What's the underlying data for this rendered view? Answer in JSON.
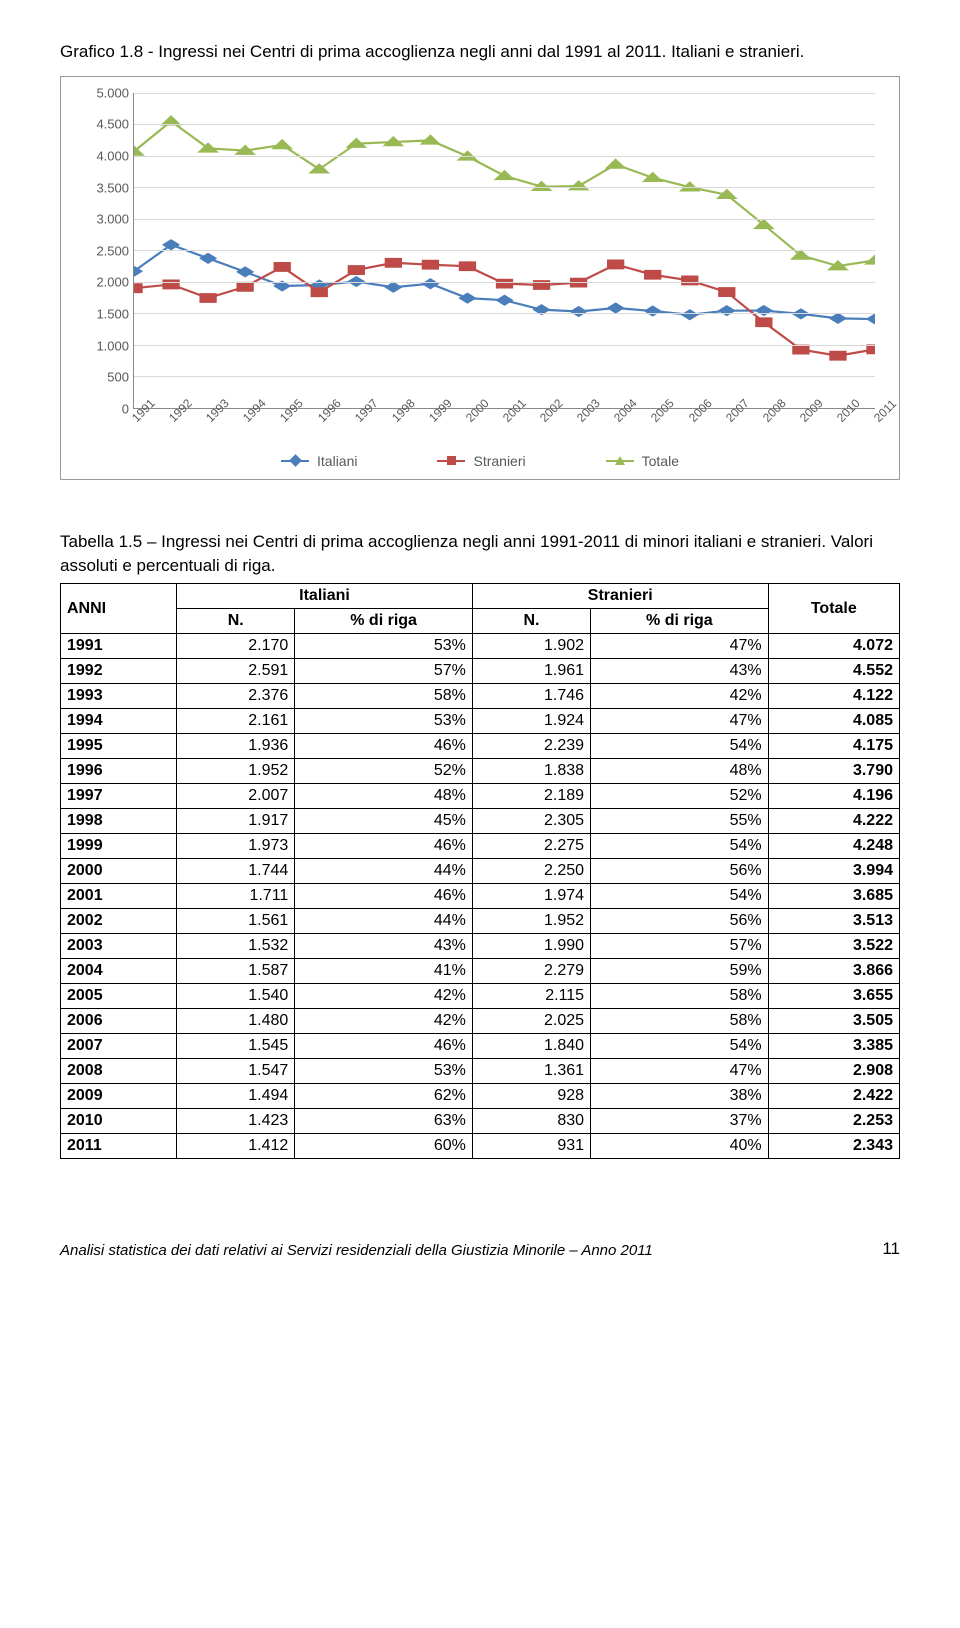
{
  "title": "Grafico 1.8 - Ingressi nei Centri di prima accoglienza negli anni dal 1991 al 2011. Italiani e stranieri.",
  "chart": {
    "type": "line",
    "ylim": [
      0,
      5000
    ],
    "yticks": [
      0,
      500,
      1000,
      1500,
      2000,
      2500,
      3000,
      3500,
      4000,
      4500,
      5000
    ],
    "ytick_labels": [
      "0",
      "500",
      "1.000",
      "1.500",
      "2.000",
      "2.500",
      "3.000",
      "3.500",
      "4.000",
      "4.500",
      "5.000"
    ],
    "categories": [
      "1991",
      "1992",
      "1993",
      "1994",
      "1995",
      "1996",
      "1997",
      "1998",
      "1999",
      "2000",
      "2001",
      "2002",
      "2003",
      "2004",
      "2005",
      "2006",
      "2007",
      "2008",
      "2009",
      "2010",
      "2011"
    ],
    "series": [
      {
        "name": "Italiani",
        "color": "#4a7ebb",
        "marker": "diamond",
        "values": [
          2170,
          2591,
          2376,
          2161,
          1936,
          1952,
          2007,
          1917,
          1973,
          1744,
          1711,
          1561,
          1532,
          1587,
          1540,
          1480,
          1545,
          1547,
          1494,
          1423,
          1412
        ]
      },
      {
        "name": "Stranieri",
        "color": "#be4b48",
        "marker": "square",
        "values": [
          1902,
          1961,
          1746,
          1924,
          2239,
          1838,
          2189,
          2305,
          2275,
          2250,
          1974,
          1952,
          1990,
          2279,
          2115,
          2025,
          1840,
          1361,
          928,
          830,
          931
        ]
      },
      {
        "name": "Totale",
        "color": "#98b954",
        "marker": "triangle",
        "values": [
          4072,
          4552,
          4122,
          4085,
          4175,
          3790,
          4196,
          4222,
          4248,
          3994,
          3685,
          3513,
          3522,
          3866,
          3655,
          3505,
          3385,
          2908,
          2422,
          2253,
          2343
        ]
      }
    ],
    "grid_color": "#d9d9d9",
    "axis_color": "#888888",
    "background": "#ffffff"
  },
  "caption": "Tabella 1.5 – Ingressi nei Centri di prima accoglienza negli anni 1991-2011 di minori italiani e stranieri. Valori assoluti e percentuali di riga.",
  "table": {
    "headers": {
      "anni": "ANNI",
      "italiani": "Italiani",
      "stranieri": "Stranieri",
      "totale": "Totale",
      "n": "N.",
      "pct": "% di riga"
    },
    "rows": [
      {
        "year": "1991",
        "it_n": "2.170",
        "it_p": "53%",
        "st_n": "1.902",
        "st_p": "47%",
        "tot": "4.072"
      },
      {
        "year": "1992",
        "it_n": "2.591",
        "it_p": "57%",
        "st_n": "1.961",
        "st_p": "43%",
        "tot": "4.552"
      },
      {
        "year": "1993",
        "it_n": "2.376",
        "it_p": "58%",
        "st_n": "1.746",
        "st_p": "42%",
        "tot": "4.122"
      },
      {
        "year": "1994",
        "it_n": "2.161",
        "it_p": "53%",
        "st_n": "1.924",
        "st_p": "47%",
        "tot": "4.085"
      },
      {
        "year": "1995",
        "it_n": "1.936",
        "it_p": "46%",
        "st_n": "2.239",
        "st_p": "54%",
        "tot": "4.175"
      },
      {
        "year": "1996",
        "it_n": "1.952",
        "it_p": "52%",
        "st_n": "1.838",
        "st_p": "48%",
        "tot": "3.790"
      },
      {
        "year": "1997",
        "it_n": "2.007",
        "it_p": "48%",
        "st_n": "2.189",
        "st_p": "52%",
        "tot": "4.196"
      },
      {
        "year": "1998",
        "it_n": "1.917",
        "it_p": "45%",
        "st_n": "2.305",
        "st_p": "55%",
        "tot": "4.222"
      },
      {
        "year": "1999",
        "it_n": "1.973",
        "it_p": "46%",
        "st_n": "2.275",
        "st_p": "54%",
        "tot": "4.248"
      },
      {
        "year": "2000",
        "it_n": "1.744",
        "it_p": "44%",
        "st_n": "2.250",
        "st_p": "56%",
        "tot": "3.994"
      },
      {
        "year": "2001",
        "it_n": "1.711",
        "it_p": "46%",
        "st_n": "1.974",
        "st_p": "54%",
        "tot": "3.685"
      },
      {
        "year": "2002",
        "it_n": "1.561",
        "it_p": "44%",
        "st_n": "1.952",
        "st_p": "56%",
        "tot": "3.513"
      },
      {
        "year": "2003",
        "it_n": "1.532",
        "it_p": "43%",
        "st_n": "1.990",
        "st_p": "57%",
        "tot": "3.522"
      },
      {
        "year": "2004",
        "it_n": "1.587",
        "it_p": "41%",
        "st_n": "2.279",
        "st_p": "59%",
        "tot": "3.866"
      },
      {
        "year": "2005",
        "it_n": "1.540",
        "it_p": "42%",
        "st_n": "2.115",
        "st_p": "58%",
        "tot": "3.655"
      },
      {
        "year": "2006",
        "it_n": "1.480",
        "it_p": "42%",
        "st_n": "2.025",
        "st_p": "58%",
        "tot": "3.505"
      },
      {
        "year": "2007",
        "it_n": "1.545",
        "it_p": "46%",
        "st_n": "1.840",
        "st_p": "54%",
        "tot": "3.385"
      },
      {
        "year": "2008",
        "it_n": "1.547",
        "it_p": "53%",
        "st_n": "1.361",
        "st_p": "47%",
        "tot": "2.908"
      },
      {
        "year": "2009",
        "it_n": "1.494",
        "it_p": "62%",
        "st_n": "928",
        "st_p": "38%",
        "tot": "2.422"
      },
      {
        "year": "2010",
        "it_n": "1.423",
        "it_p": "63%",
        "st_n": "830",
        "st_p": "37%",
        "tot": "2.253"
      },
      {
        "year": "2011",
        "it_n": "1.412",
        "it_p": "60%",
        "st_n": "931",
        "st_p": "40%",
        "tot": "2.343"
      }
    ]
  },
  "footer_text": "Analisi statistica dei dati relativi ai Servizi residenziali della Giustizia Minorile – Anno 2011",
  "page_number": "11"
}
